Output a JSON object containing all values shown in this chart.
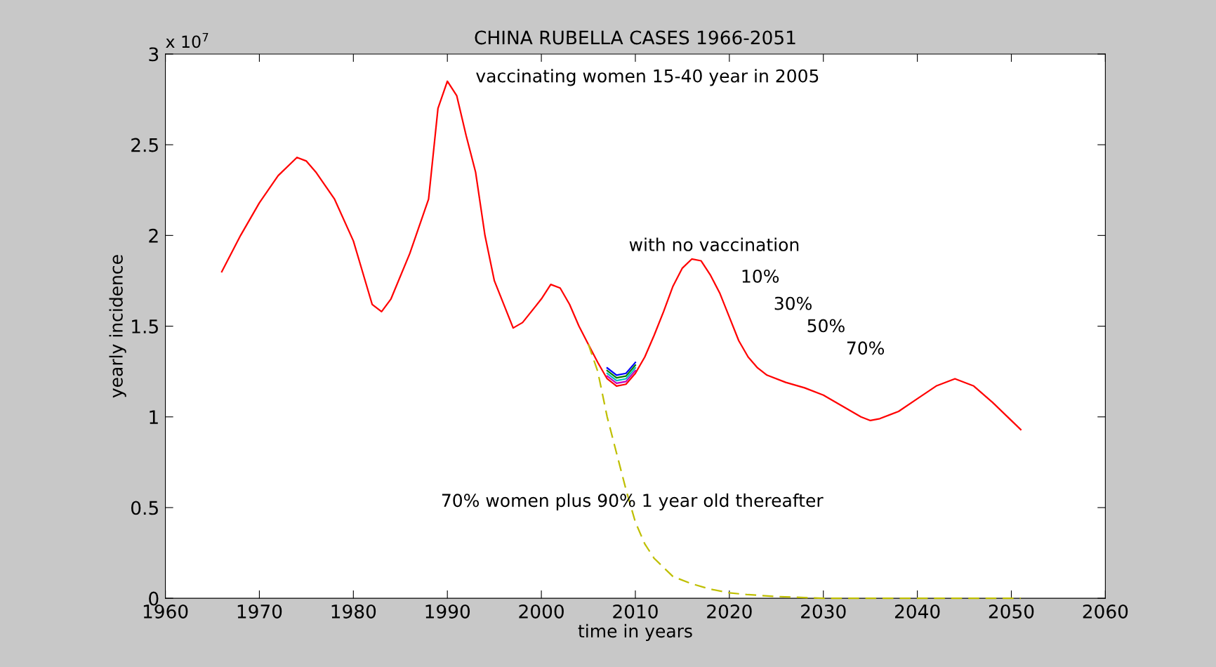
{
  "chart_data": {
    "type": "line",
    "title": "CHINA RUBELLA CASES 1966-2051",
    "xlabel": "time in years",
    "ylabel": "yearly incidence",
    "xlim": [
      1960,
      2060
    ],
    "xticks": [
      1960,
      1970,
      1980,
      1990,
      2000,
      2010,
      2020,
      2030,
      2040,
      2050,
      2060
    ],
    "ylim": [
      0,
      3
    ],
    "yticks": [
      0,
      0.5,
      1,
      1.5,
      2,
      2.5,
      3
    ],
    "grid": false,
    "legend": false,
    "annotations": [
      "x 10$^{7}$",
      "vaccinating women 15-40 year in 2005",
      "with no vaccination",
      "10%",
      "30%",
      "50%",
      "70%",
      "70% women plus 90% 1 year old thereafter"
    ],
    "series": [
      {
        "color": "#ff0000",
        "x": [
          1966,
          1968,
          1970,
          1972,
          1974,
          1975,
          1976,
          1978,
          1980,
          1982,
          1983,
          1984,
          1986,
          1988,
          1989,
          1990,
          1991,
          1992,
          1993,
          1994,
          1995,
          1997,
          1998,
          2000,
          2001,
          2002,
          2003,
          2004,
          2005,
          2006,
          2007,
          2008,
          2009,
          2010,
          2011,
          2012,
          2013,
          2014,
          2015,
          2016,
          2017,
          2018,
          2019,
          2020,
          2021,
          2022,
          2023,
          2024,
          2026,
          2028,
          2030,
          2032,
          2034,
          2035,
          2036,
          2038,
          2040,
          2042,
          2044,
          2046,
          2048,
          2051
        ],
        "values": [
          1.8,
          2.0,
          2.18,
          2.33,
          2.43,
          2.41,
          2.35,
          2.2,
          1.97,
          1.62,
          1.58,
          1.65,
          1.9,
          2.2,
          2.7,
          2.85,
          2.77,
          2.55,
          2.35,
          2.0,
          1.75,
          1.49,
          1.52,
          1.65,
          1.73,
          1.71,
          1.62,
          1.5,
          1.4,
          1.3,
          1.21,
          1.17,
          1.18,
          1.24,
          1.33,
          1.45,
          1.58,
          1.72,
          1.82,
          1.87,
          1.86,
          1.78,
          1.68,
          1.55,
          1.42,
          1.33,
          1.27,
          1.23,
          1.19,
          1.16,
          1.12,
          1.06,
          1.0,
          0.98,
          0.99,
          1.03,
          1.1,
          1.17,
          1.21,
          1.17,
          1.08,
          0.93
        ]
      },
      {
        "color": "#bf00bf",
        "x": [
          2007,
          2008,
          2009,
          2010
        ],
        "values": [
          1.225,
          1.185,
          1.195,
          1.255
        ]
      },
      {
        "color": "#00bfbf",
        "x": [
          2007,
          2008,
          2009,
          2010
        ],
        "values": [
          1.24,
          1.2,
          1.21,
          1.27
        ]
      },
      {
        "color": "#008000",
        "x": [
          2007,
          2008,
          2009,
          2010
        ],
        "values": [
          1.255,
          1.215,
          1.225,
          1.285
        ]
      },
      {
        "color": "#0000ff",
        "x": [
          2007,
          2008,
          2009,
          2010
        ],
        "values": [
          1.27,
          1.23,
          1.24,
          1.3
        ]
      },
      {
        "color": "#bfbf00",
        "line_style": "dashed",
        "x": [
          2005,
          2006,
          2007,
          2008,
          2009,
          2010,
          2011,
          2012,
          2014,
          2016,
          2018,
          2020,
          2022,
          2025,
          2030,
          2035,
          2040,
          2045,
          2051
        ],
        "values": [
          1.4,
          1.25,
          1.0,
          0.8,
          0.6,
          0.42,
          0.3,
          0.22,
          0.12,
          0.08,
          0.05,
          0.03,
          0.02,
          0.01,
          0.0,
          0.0,
          0.0,
          0.0,
          0.0
        ]
      }
    ]
  }
}
